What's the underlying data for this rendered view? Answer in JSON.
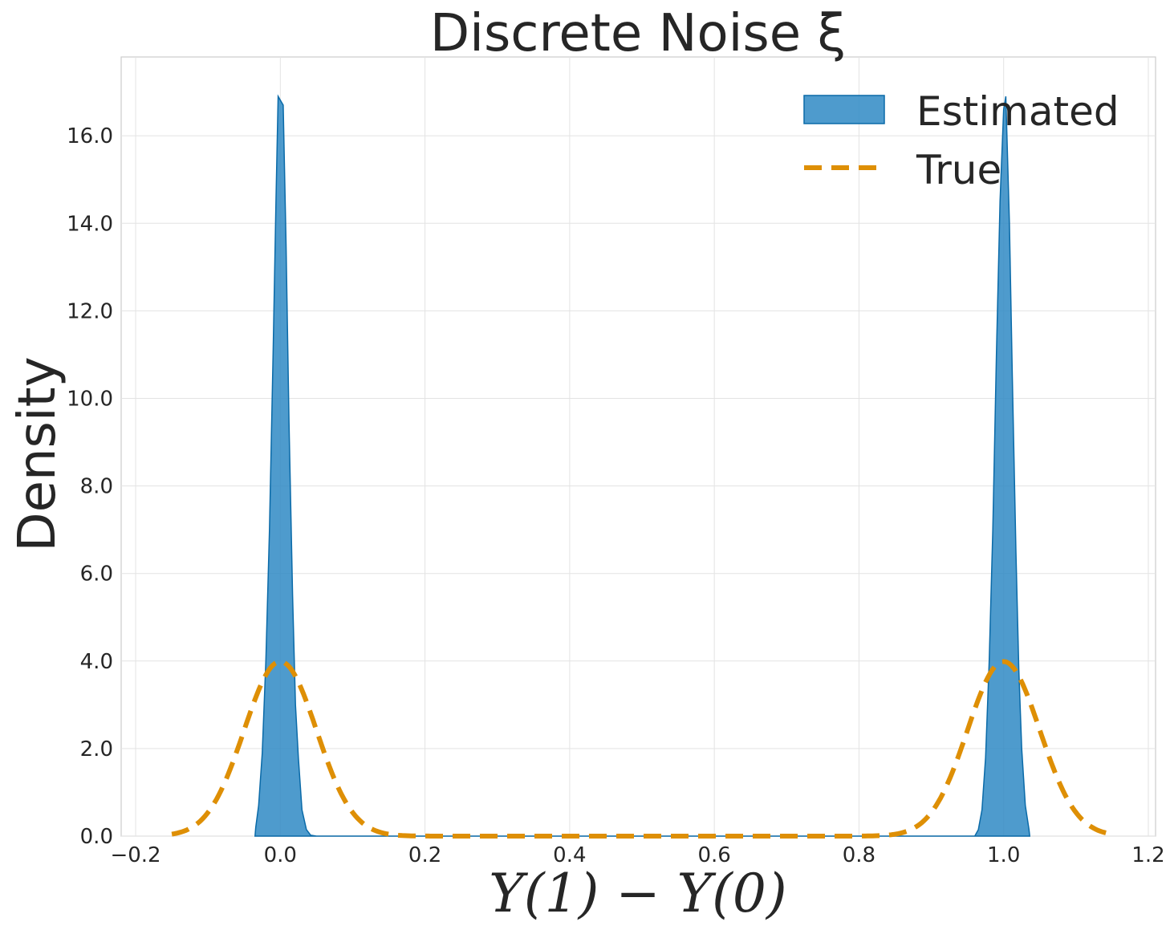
{
  "chart_data": {
    "type": "area",
    "title": "Discrete Noise ξ",
    "xlabel": "Y(1) − Y(0)",
    "ylabel": "Density",
    "xlim": [
      -0.22,
      1.21
    ],
    "ylim": [
      0,
      17.8
    ],
    "xticks": [
      -0.2,
      0.0,
      0.2,
      0.4,
      0.6,
      0.8,
      1.0,
      1.2
    ],
    "xtick_labels": [
      "−0.2",
      "0.0",
      "0.2",
      "0.4",
      "0.6",
      "0.8",
      "1.0",
      "1.2"
    ],
    "yticks": [
      0,
      2,
      4,
      6,
      8,
      10,
      12,
      14,
      16
    ],
    "ytick_labels": [
      "0.0",
      "2.0",
      "4.0",
      "6.0",
      "8.0",
      "10.0",
      "12.0",
      "14.0",
      "16.0"
    ],
    "grid": true,
    "legend_position": "top-right",
    "series": [
      {
        "name": "Estimated",
        "style": "filled-area",
        "color": "#2f8ac4",
        "edge_color": "#0a6aa8",
        "points": [
          [
            -0.035,
            0.0
          ],
          [
            -0.034,
            0.2
          ],
          [
            -0.03,
            0.7
          ],
          [
            -0.025,
            1.9
          ],
          [
            -0.02,
            4.0
          ],
          [
            -0.015,
            7.0
          ],
          [
            -0.01,
            11.0
          ],
          [
            -0.006,
            14.5
          ],
          [
            -0.003,
            16.9
          ],
          [
            0.004,
            16.7
          ],
          [
            0.008,
            13.5
          ],
          [
            0.012,
            9.5
          ],
          [
            0.017,
            5.5
          ],
          [
            0.021,
            3.0
          ],
          [
            0.025,
            1.8
          ],
          [
            0.03,
            0.6
          ],
          [
            0.036,
            0.15
          ],
          [
            0.042,
            0.02
          ],
          [
            0.05,
            0.0
          ],
          [
            0.96,
            0.0
          ],
          [
            0.965,
            0.15
          ],
          [
            0.97,
            0.6
          ],
          [
            0.975,
            1.8
          ],
          [
            0.98,
            4.0
          ],
          [
            0.985,
            7.0
          ],
          [
            0.99,
            11.0
          ],
          [
            0.995,
            14.5
          ],
          [
            1.0,
            16.6
          ],
          [
            1.003,
            16.9
          ],
          [
            1.008,
            14.0
          ],
          [
            1.012,
            10.5
          ],
          [
            1.017,
            6.5
          ],
          [
            1.021,
            3.8
          ],
          [
            1.025,
            2.0
          ],
          [
            1.03,
            0.7
          ],
          [
            1.035,
            0.15
          ],
          [
            1.036,
            0.0
          ]
        ]
      },
      {
        "name": "True",
        "style": "dashed-line",
        "color": "#de8f05",
        "mixture": {
          "centers": [
            0.0,
            1.0
          ],
          "sd": 0.05,
          "weight_each": 0.5
        },
        "x_range": [
          -0.15,
          1.15
        ],
        "peak_density": 3.99
      }
    ]
  }
}
